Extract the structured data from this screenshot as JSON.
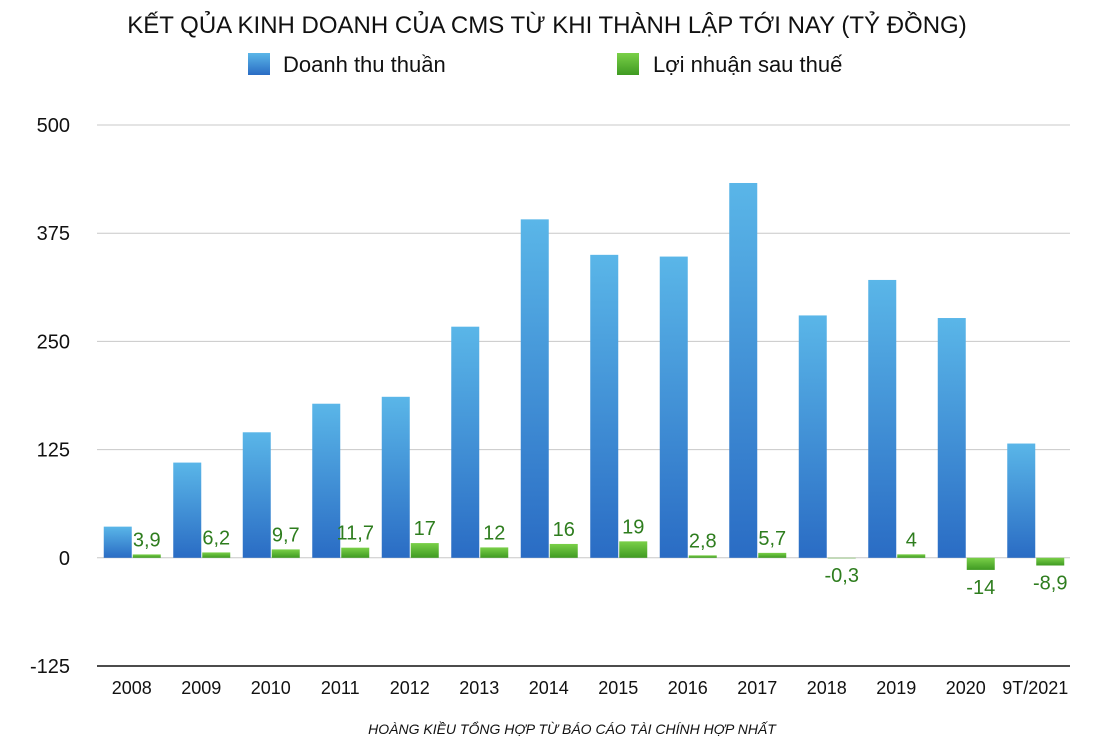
{
  "chart_data": {
    "type": "bar",
    "title": "KẾT QỦA KINH DOANH CỦA CMS TỪ KHI THÀNH LẬP TỚI NAY (TỶ ĐỒNG)",
    "categories": [
      "2008",
      "2009",
      "2010",
      "2011",
      "2012",
      "2013",
      "2014",
      "2015",
      "2016",
      "2017",
      "2018",
      "2019",
      "2020",
      "9T/2021"
    ],
    "series": [
      {
        "name": "Doanh thu thuần",
        "values": [
          36,
          110,
          145,
          178,
          186,
          267,
          391,
          350,
          348,
          433,
          280,
          321,
          277,
          132
        ],
        "color": "#3a8fd6"
      },
      {
        "name": "Lợi nhuận sau thuế",
        "values": [
          3.9,
          6.2,
          9.7,
          11.7,
          17,
          12,
          16,
          19,
          2.8,
          5.7,
          -0.3,
          4,
          -14,
          -8.9
        ],
        "color": "#5cb82e"
      }
    ],
    "profit_labels": [
      "3,9",
      "6,2",
      "9,7",
      "11,7",
      "17",
      "12",
      "16",
      "19",
      "2,8",
      "5,7",
      "-0,3",
      "4",
      "-14",
      "-8,9"
    ],
    "ylim": [
      -125,
      500
    ],
    "yticks": [
      -125,
      0,
      125,
      250,
      375,
      500
    ],
    "grid": true,
    "legend": "top-center",
    "source": "HOÀNG KIỀU TỔNG HỢP TỪ BÁO CÁO TÀI CHÍNH HỢP NHẤT"
  }
}
